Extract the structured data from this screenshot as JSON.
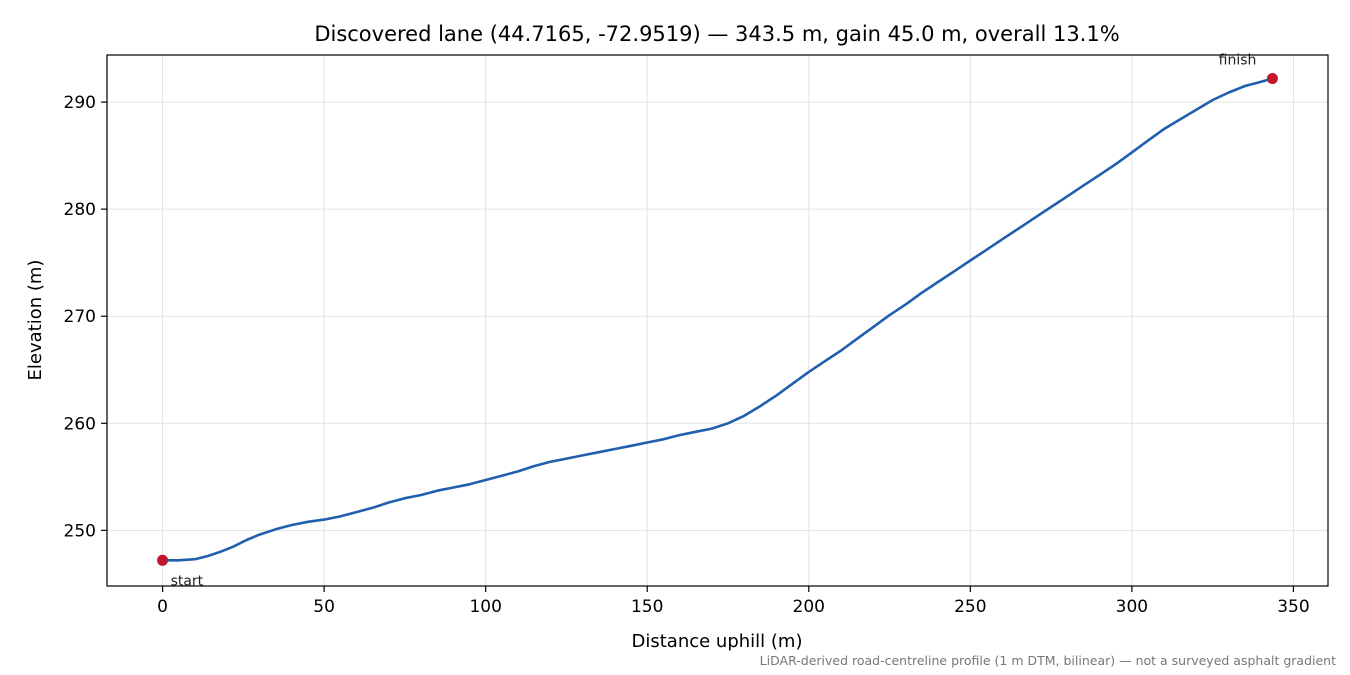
{
  "chart_data": {
    "type": "line",
    "title": "Discovered lane (44.7165, -72.9519) — 343.5 m, gain 45.0 m, overall 13.1%",
    "xlabel": "Distance uphill (m)",
    "ylabel": "Elevation (m)",
    "xlim": [
      -17.2,
      360.7
    ],
    "ylim": [
      244.8,
      294.4
    ],
    "xticks": [
      0,
      50,
      100,
      150,
      200,
      250,
      300,
      350
    ],
    "yticks": [
      250,
      260,
      270,
      280,
      290
    ],
    "grid": true,
    "series": [
      {
        "color": "#1f5fad",
        "x": [
          0,
          5,
          10,
          14,
          18,
          22,
          26,
          30,
          35,
          40,
          45,
          50,
          55,
          60,
          65,
          70,
          75,
          80,
          85,
          90,
          95,
          100,
          105,
          110,
          115,
          120,
          125,
          130,
          135,
          140,
          145,
          150,
          155,
          160,
          165,
          170,
          175,
          180,
          185,
          190,
          195,
          200,
          205,
          210,
          215,
          220,
          225,
          230,
          235,
          240,
          245,
          250,
          255,
          260,
          265,
          270,
          275,
          280,
          285,
          290,
          295,
          300,
          305,
          310,
          315,
          320,
          325,
          330,
          335,
          340,
          343.5
        ],
        "y": [
          247.2,
          247.2,
          247.3,
          247.6,
          248.0,
          248.5,
          249.1,
          249.6,
          250.1,
          250.5,
          250.8,
          251.0,
          251.3,
          251.7,
          252.1,
          252.6,
          253.0,
          253.3,
          253.7,
          254.0,
          254.3,
          254.7,
          255.1,
          255.5,
          256.0,
          256.4,
          256.7,
          257.0,
          257.3,
          257.6,
          257.9,
          258.2,
          258.5,
          258.9,
          259.2,
          259.5,
          260.0,
          260.7,
          261.6,
          262.6,
          263.7,
          264.8,
          265.8,
          266.8,
          267.9,
          269.0,
          270.1,
          271.1,
          272.2,
          273.2,
          274.2,
          275.2,
          276.2,
          277.2,
          278.2,
          279.2,
          280.2,
          281.2,
          282.2,
          283.2,
          284.2,
          285.3,
          286.4,
          287.5,
          288.4,
          289.3,
          290.2,
          290.9,
          291.5,
          291.9,
          292.2
        ]
      }
    ],
    "markers": [
      {
        "label": "start",
        "x": 0,
        "y": 247.2,
        "color": "#c0182a"
      },
      {
        "label": "finish",
        "x": 343.5,
        "y": 292.2,
        "color": "#c0182a"
      }
    ],
    "footnote": "LiDAR-derived road-centreline profile (1 m DTM, bilinear) — not a surveyed asphalt gradient"
  }
}
